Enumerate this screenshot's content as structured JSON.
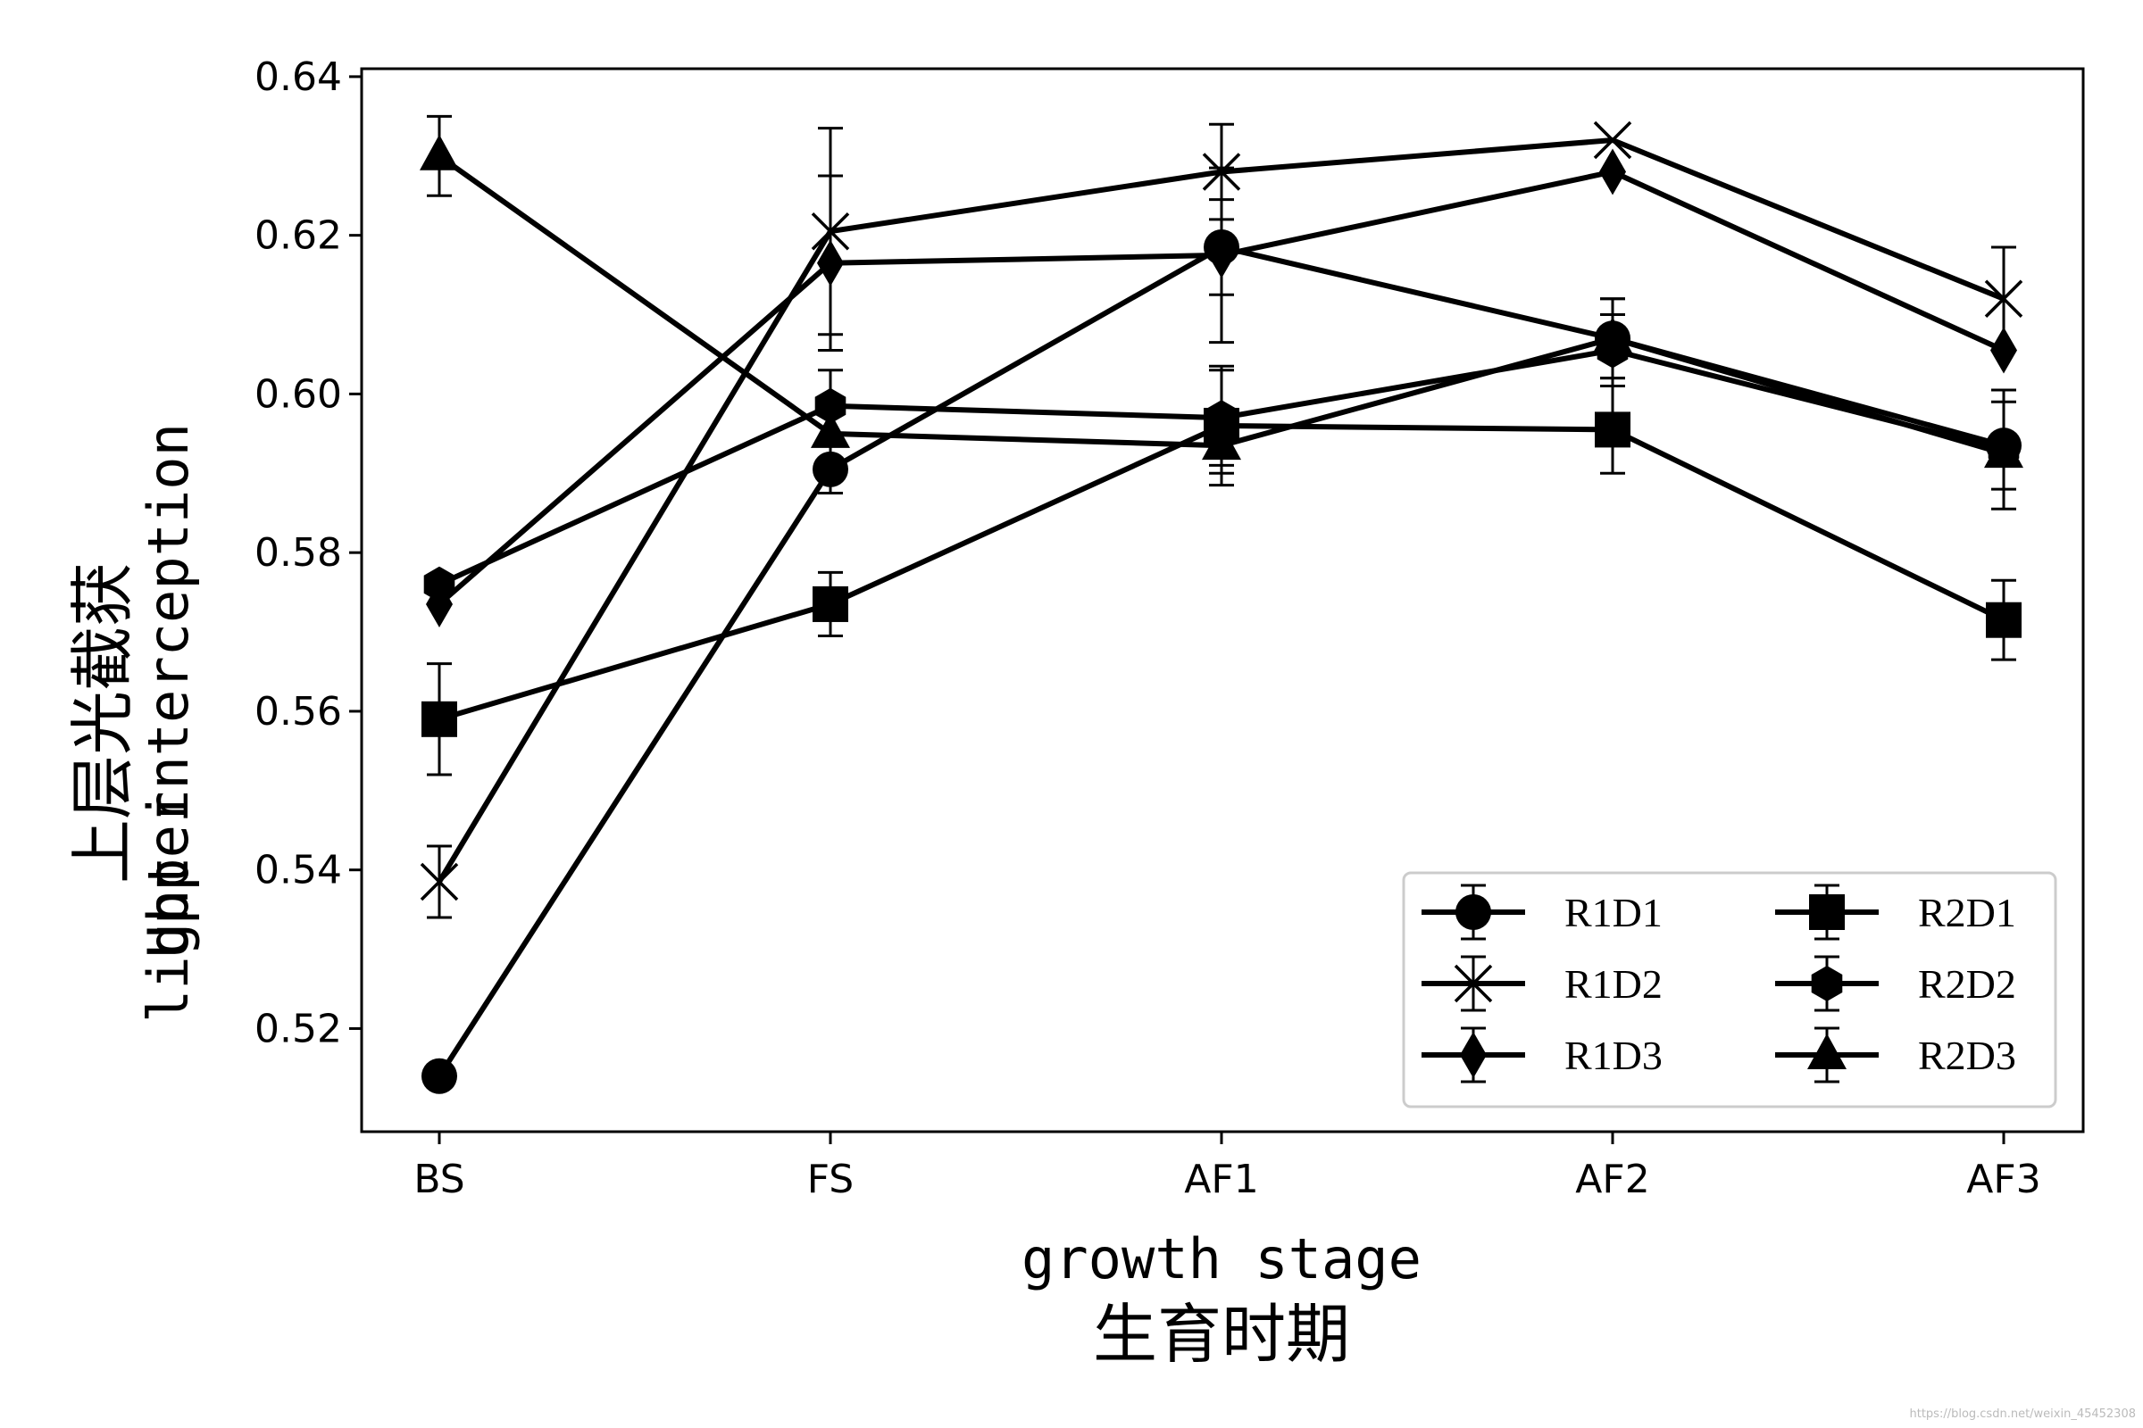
{
  "chart_data": {
    "type": "line",
    "title": "",
    "categories": [
      "BS",
      "FS",
      "AF1",
      "AF2",
      "AF3"
    ],
    "xlabel_en": "growth stage",
    "xlabel_zh": "生育时期",
    "ylabel_en_line1": "Upper",
    "ylabel_en_line2": "light interception",
    "ylabel_zh": "上层光截获",
    "ylim": [
      0.507,
      0.641
    ],
    "yticks": [
      0.52,
      0.54,
      0.56,
      0.58,
      0.6,
      0.62,
      0.64
    ],
    "ytick_labels": [
      "0.52",
      "0.54",
      "0.56",
      "0.58",
      "0.60",
      "0.62",
      "0.64"
    ],
    "grid": false,
    "legend_position": "bottom-right",
    "legend_columns": 2,
    "line_color": "#000000",
    "series": [
      {
        "name": "R1D1",
        "marker": "circle",
        "values": [
          0.514,
          0.5905,
          0.6185,
          0.607,
          0.5935
        ],
        "errors": [
          0.0,
          0.003,
          0.006,
          0.005,
          0.0055
        ]
      },
      {
        "name": "R1D2",
        "marker": "x",
        "values": [
          0.5385,
          0.6205,
          0.628,
          0.632,
          0.612
        ],
        "errors": [
          0.0045,
          0.013,
          0.006,
          0.0,
          0.0065
        ]
      },
      {
        "name": "R1D3",
        "marker": "diamond",
        "values": [
          0.5735,
          0.6165,
          0.6175,
          0.628,
          0.6055
        ],
        "errors": [
          0.0,
          0.011,
          0.011,
          0.0,
          0.0
        ]
      },
      {
        "name": "R2D1",
        "marker": "square",
        "values": [
          0.559,
          0.5735,
          0.596,
          0.5955,
          0.5715
        ],
        "errors": [
          0.007,
          0.004,
          0.0075,
          0.0055,
          0.005
        ]
      },
      {
        "name": "R2D2",
        "marker": "hexagon",
        "values": [
          0.576,
          0.5985,
          0.597,
          0.6055,
          0.593
        ],
        "errors": [
          0.0,
          0.0045,
          0.006,
          0.0045,
          0.0075
        ]
      },
      {
        "name": "R2D3",
        "marker": "triangle",
        "values": [
          0.63,
          0.595,
          0.5935,
          0.607,
          0.5925
        ],
        "errors": [
          0.005,
          0.0,
          0.0035,
          0.005,
          0.0
        ]
      }
    ]
  },
  "watermark": "https://blog.csdn.net/weixin_45452308"
}
